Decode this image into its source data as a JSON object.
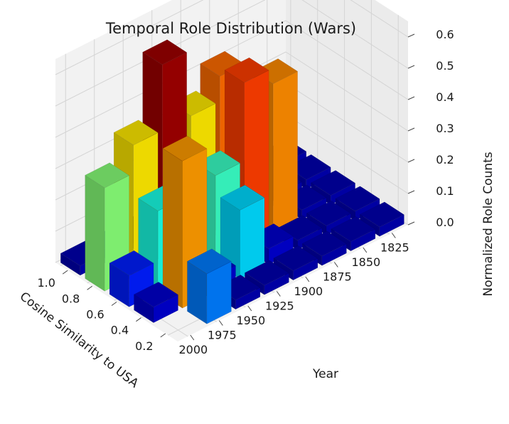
{
  "chart_data": {
    "type": "bar3d",
    "title": "Temporal Role Distribution (Wars)",
    "xlabel": "Year",
    "ylabel": "Cosine Similarity to USA",
    "zlabel": "Normalized Role Counts",
    "x_ticks": [
      "2000",
      "1975",
      "1950",
      "1925",
      "1900",
      "1875",
      "1850",
      "1825"
    ],
    "y_ticks": [
      "1.0",
      "0.8",
      "0.6",
      "0.4",
      "0.2"
    ],
    "z_ticks": [
      "0.0",
      "0.1",
      "0.2",
      "0.3",
      "0.4",
      "0.5",
      "0.6"
    ],
    "zlim": [
      0,
      0.65
    ],
    "grid": true,
    "colormap": "jet",
    "bars": [
      {
        "year": 2000,
        "similarity": 1.0,
        "value": 0.03
      },
      {
        "year": 1975,
        "similarity": 1.0,
        "value": 0.03
      },
      {
        "year": 1950,
        "similarity": 1.0,
        "value": 0.03
      },
      {
        "year": 1925,
        "similarity": 1.0,
        "value": 0.03
      },
      {
        "year": 1900,
        "similarity": 1.0,
        "value": 0.03
      },
      {
        "year": 1875,
        "similarity": 1.0,
        "value": 0.03
      },
      {
        "year": 1850,
        "similarity": 1.0,
        "value": 0.03
      },
      {
        "year": 1825,
        "similarity": 1.0,
        "value": 0.03
      },
      {
        "year": 2000,
        "similarity": 0.8,
        "value": 0.33
      },
      {
        "year": 1975,
        "similarity": 0.8,
        "value": 0.42
      },
      {
        "year": 1950,
        "similarity": 0.8,
        "value": 0.63
      },
      {
        "year": 1925,
        "similarity": 0.8,
        "value": 0.42
      },
      {
        "year": 1900,
        "similarity": 0.8,
        "value": 0.5
      },
      {
        "year": 1875,
        "similarity": 0.8,
        "value": 0.03
      },
      {
        "year": 1850,
        "similarity": 0.8,
        "value": 0.03
      },
      {
        "year": 1825,
        "similarity": 0.8,
        "value": 0.03
      },
      {
        "year": 2000,
        "similarity": 0.6,
        "value": 0.1
      },
      {
        "year": 1975,
        "similarity": 0.6,
        "value": 0.26
      },
      {
        "year": 1950,
        "similarity": 0.6,
        "value": 0.03
      },
      {
        "year": 1925,
        "similarity": 0.6,
        "value": 0.28
      },
      {
        "year": 1900,
        "similarity": 0.6,
        "value": 0.53
      },
      {
        "year": 1875,
        "similarity": 0.6,
        "value": 0.48
      },
      {
        "year": 1850,
        "similarity": 0.6,
        "value": 0.03
      },
      {
        "year": 1825,
        "similarity": 0.6,
        "value": 0.03
      },
      {
        "year": 2000,
        "similarity": 0.4,
        "value": 0.05
      },
      {
        "year": 1975,
        "similarity": 0.4,
        "value": 0.47
      },
      {
        "year": 1950,
        "similarity": 0.4,
        "value": 0.05
      },
      {
        "year": 1925,
        "similarity": 0.4,
        "value": 0.22
      },
      {
        "year": 1900,
        "similarity": 0.4,
        "value": 0.05
      },
      {
        "year": 1875,
        "similarity": 0.4,
        "value": 0.03
      },
      {
        "year": 1850,
        "similarity": 0.4,
        "value": 0.03
      },
      {
        "year": 1825,
        "similarity": 0.4,
        "value": 0.03
      },
      {
        "year": 2000,
        "similarity": 0.2,
        "value": 0.0
      },
      {
        "year": 1975,
        "similarity": 0.2,
        "value": 0.16
      },
      {
        "year": 1950,
        "similarity": 0.2,
        "value": 0.03
      },
      {
        "year": 1925,
        "similarity": 0.2,
        "value": 0.03
      },
      {
        "year": 1900,
        "similarity": 0.2,
        "value": 0.03
      },
      {
        "year": 1875,
        "similarity": 0.2,
        "value": 0.03
      },
      {
        "year": 1850,
        "similarity": 0.2,
        "value": 0.03
      },
      {
        "year": 1825,
        "similarity": 0.2,
        "value": 0.03
      }
    ]
  }
}
